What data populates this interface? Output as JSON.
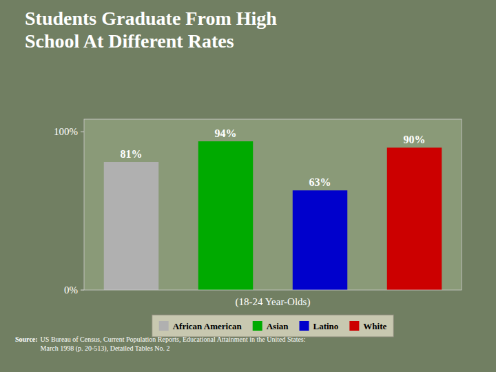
{
  "chart_data": {
    "type": "bar",
    "title": "Students Graduate From High\nSchool At Different Rates",
    "categories": [
      "African American",
      "Asian",
      "Latino",
      "White"
    ],
    "values": [
      81,
      94,
      63,
      90
    ],
    "value_labels": [
      "81%",
      "94%",
      "63%",
      "90%"
    ],
    "colors": [
      "#b0b0b0",
      "#00aa00",
      "#0000cc",
      "#cc0000"
    ],
    "xlabel": "(18-24 Year-Olds)",
    "ylim": [
      0,
      108
    ],
    "yticks": [
      {
        "value": 0,
        "label": "0%"
      },
      {
        "value": 100,
        "label": "100%"
      }
    ],
    "grid": false,
    "legend": "bottom",
    "data_labels": true,
    "tick_labels": "y",
    "annotations": [
      "Source:",
      "US Bureau of Census, Current Population Reports, Educational Attainment in the United States:\nMarch 1998 (p. 20-513), Detailed Tables No. 2"
    ]
  }
}
